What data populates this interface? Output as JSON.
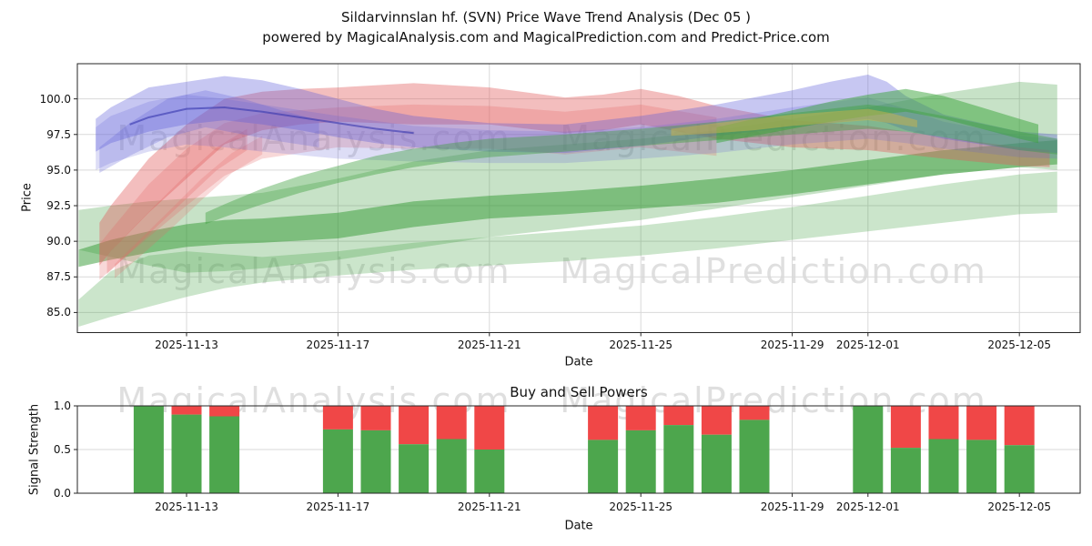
{
  "header": {
    "title_line1": "Sildarvinnslan hf. (SVN) Price Wave Trend Analysis (Dec 05 )",
    "title_line2": "powered by MagicalAnalysis.com and MagicalPrediction.com and Predict-Price.com"
  },
  "watermarks": {
    "analysis": "MagicalAnalysis.com",
    "prediction": "MagicalPrediction.com"
  },
  "chart_data": [
    {
      "type": "area",
      "title": "",
      "xlabel": "Date",
      "ylabel": "Price",
      "ylim": [
        83.6,
        102.5
      ],
      "xlim_days": [
        0.1,
        26.6
      ],
      "grid": true,
      "yticks": {
        "values": [
          85.0,
          87.5,
          90.0,
          92.5,
          95.0,
          97.5,
          100.0
        ],
        "labels": [
          "85.0",
          "87.5",
          "90.0",
          "92.5",
          "95.0",
          "97.5",
          "100.0"
        ]
      },
      "xticks": {
        "days": [
          3,
          7,
          11,
          15,
          19,
          21,
          25
        ],
        "labels": [
          "2025-11-13",
          "2025-11-17",
          "2025-11-21",
          "2025-11-25",
          "2025-11-29",
          "2025-12-01",
          "2025-12-05"
        ]
      },
      "bands": [
        {
          "name": "green-light-lower",
          "color": "#44a044",
          "opacity": 0.28,
          "x": [
            0.15,
            1,
            2,
            3,
            4,
            5,
            7,
            9,
            11,
            13,
            15,
            17,
            19,
            21,
            23,
            25,
            26
          ],
          "upper": [
            85.9,
            87.9,
            89.0,
            89.3,
            89.1,
            88.9,
            89.3,
            89.9,
            90.3,
            90.7,
            91.1,
            91.7,
            92.4,
            93.2,
            94.0,
            94.7,
            94.9
          ],
          "lower": [
            84.0,
            84.7,
            85.4,
            86.1,
            86.7,
            87.1,
            87.6,
            88.0,
            88.3,
            88.6,
            89.0,
            89.5,
            90.1,
            90.7,
            91.3,
            91.9,
            92.0
          ]
        },
        {
          "name": "green-light-main",
          "color": "#44a044",
          "opacity": 0.3,
          "x": [
            0.15,
            1,
            2,
            3,
            4,
            5,
            7,
            9,
            11,
            13,
            15,
            17,
            19,
            21,
            23,
            25,
            26
          ],
          "upper": [
            92.2,
            92.5,
            92.8,
            93.0,
            93.2,
            93.4,
            94.4,
            95.6,
            96.4,
            96.8,
            97.2,
            97.8,
            98.6,
            99.4,
            100.4,
            101.2,
            101.0
          ],
          "lower": [
            89.4,
            88.9,
            88.3,
            87.8,
            87.9,
            88.1,
            88.7,
            89.5,
            90.3,
            90.9,
            91.5,
            92.3,
            93.1,
            93.9,
            94.7,
            95.2,
            95.0
          ]
        },
        {
          "name": "green-dark",
          "color": "#339933",
          "opacity": 0.5,
          "x": [
            0.15,
            1,
            2,
            3,
            4,
            5,
            7,
            9,
            11,
            13,
            15,
            17,
            19,
            21,
            23,
            25,
            26
          ],
          "upper": [
            89.4,
            90.1,
            90.7,
            91.2,
            91.5,
            91.6,
            92.0,
            92.8,
            93.2,
            93.5,
            93.9,
            94.4,
            95.0,
            95.7,
            96.4,
            96.9,
            97.1
          ],
          "lower": [
            88.2,
            88.7,
            89.2,
            89.6,
            89.8,
            89.9,
            90.2,
            91.0,
            91.6,
            91.9,
            92.3,
            92.7,
            93.3,
            94.0,
            94.7,
            95.2,
            95.4
          ]
        },
        {
          "name": "red-wide-pink",
          "color": "#e46a6a",
          "opacity": 0.26,
          "x": [
            0.7,
            1,
            2,
            3,
            4,
            5,
            7,
            9,
            11,
            13,
            15,
            17
          ],
          "upper": [
            89.8,
            90.8,
            94.0,
            96.5,
            98.3,
            99.0,
            99.4,
            99.6,
            99.5,
            99.1,
            99.6,
            98.7
          ],
          "lower": [
            87.3,
            88.0,
            90.3,
            92.5,
            94.6,
            95.8,
            96.6,
            96.5,
            96.5,
            96.1,
            96.6,
            96.0
          ]
        },
        {
          "name": "red-stripe-a",
          "color": "#e46a6a",
          "opacity": 0.3,
          "x": [
            0.9,
            1.5,
            2.2,
            3,
            3.8,
            4.6
          ],
          "upper": [
            89.0,
            90.7,
            92.6,
            94.7,
            96.6,
            97.9
          ],
          "lower": [
            87.7,
            89.2,
            91.0,
            93.0,
            95.0,
            96.4
          ]
        },
        {
          "name": "red-stripe-b",
          "color": "#e46a6a",
          "opacity": 0.24,
          "x": [
            1.1,
            1.8,
            2.6,
            3.4,
            4.2,
            5.0
          ],
          "upper": [
            88.4,
            90.2,
            92.3,
            94.4,
            96.2,
            97.4
          ],
          "lower": [
            87.4,
            89.0,
            90.9,
            92.9,
            94.8,
            96.1
          ]
        },
        {
          "name": "red-main",
          "color": "#e05d5d",
          "opacity": 0.4,
          "x": [
            0.7,
            1,
            2,
            3,
            4,
            5,
            6,
            7,
            9,
            11,
            13,
            14,
            15,
            16,
            17,
            19,
            21,
            23,
            25,
            25.8
          ],
          "upper": [
            91.3,
            92.5,
            95.8,
            98.2,
            100.0,
            100.5,
            100.7,
            100.8,
            101.1,
            100.8,
            100.1,
            100.3,
            100.7,
            100.2,
            99.5,
            98.5,
            98.1,
            97.3,
            96.6,
            96.4
          ],
          "lower": [
            88.3,
            89.3,
            92.0,
            94.4,
            96.8,
            97.8,
            98.2,
            98.4,
            98.2,
            98.2,
            97.6,
            97.8,
            98.2,
            97.7,
            97.2,
            96.6,
            96.4,
            95.8,
            95.3,
            95.2
          ]
        },
        {
          "name": "blue-light",
          "color": "#6565d8",
          "opacity": 0.22,
          "x": [
            0.6,
            1,
            2,
            3,
            4,
            5,
            7,
            9,
            11,
            13,
            15,
            17,
            19,
            21,
            22,
            23,
            25,
            26
          ],
          "upper": [
            98.0,
            98.8,
            99.8,
            100.3,
            100.0,
            99.6,
            98.8,
            98.1,
            97.8,
            97.7,
            98.0,
            98.6,
            99.4,
            100.1,
            99.3,
            98.4,
            97.4,
            97.2
          ],
          "lower": [
            95.0,
            95.5,
            96.3,
            96.8,
            96.6,
            96.3,
            95.8,
            95.6,
            95.5,
            95.5,
            95.8,
            96.2,
            96.8,
            97.2,
            96.9,
            96.5,
            95.9,
            95.8
          ]
        },
        {
          "name": "blue-small-left",
          "color": "#6565d8",
          "opacity": 0.28,
          "x": [
            0.7,
            1.5,
            2.5,
            3.5,
            4.5,
            5.5,
            6.5
          ],
          "upper": [
            96.6,
            98.3,
            100.0,
            100.6,
            100.0,
            99.2,
            98.5
          ],
          "lower": [
            94.8,
            96.0,
            97.3,
            98.0,
            97.5,
            97.0,
            96.6
          ]
        },
        {
          "name": "blue-main",
          "color": "#5a5ad8",
          "opacity": 0.34,
          "x": [
            0.6,
            1,
            2,
            3,
            4,
            5,
            6,
            7,
            8,
            9,
            11,
            13,
            15,
            17,
            19,
            20,
            21,
            21.5,
            22,
            23,
            25,
            26
          ],
          "upper": [
            98.6,
            99.4,
            100.8,
            101.2,
            101.6,
            101.3,
            100.7,
            100.0,
            99.3,
            98.8,
            98.3,
            98.2,
            98.8,
            99.6,
            100.6,
            101.2,
            101.7,
            101.2,
            100.2,
            98.9,
            97.7,
            97.5
          ],
          "lower": [
            96.3,
            96.9,
            97.7,
            98.2,
            98.5,
            98.2,
            97.8,
            97.3,
            96.9,
            96.6,
            96.3,
            96.2,
            96.7,
            97.4,
            98.0,
            98.3,
            98.6,
            98.3,
            97.8,
            97.2,
            96.4,
            96.2
          ]
        },
        {
          "name": "green-crossing",
          "color": "#3f9f3f",
          "opacity": 0.42,
          "x": [
            3.5,
            4,
            5,
            6,
            7,
            8,
            9,
            10,
            11,
            13,
            15,
            17,
            19,
            21,
            22,
            23,
            25,
            26
          ],
          "upper": [
            92.0,
            92.6,
            93.7,
            94.6,
            95.3,
            96.0,
            96.5,
            96.9,
            97.2,
            97.5,
            97.9,
            98.4,
            99.0,
            99.6,
            99.3,
            98.8,
            97.7,
            97.2
          ],
          "lower": [
            91.2,
            91.7,
            92.6,
            93.4,
            94.1,
            94.7,
            95.2,
            95.6,
            95.9,
            96.3,
            96.7,
            97.1,
            97.5,
            97.9,
            97.7,
            97.3,
            96.4,
            96.1
          ]
        },
        {
          "name": "green-top-right",
          "color": "#3aa33a",
          "opacity": 0.5,
          "x": [
            17,
            18,
            19,
            20,
            21,
            22,
            23,
            24,
            25,
            25.5
          ],
          "upper": [
            98.0,
            98.6,
            99.2,
            99.8,
            100.3,
            100.7,
            100.2,
            99.4,
            98.6,
            98.2
          ],
          "lower": [
            96.9,
            97.4,
            97.9,
            98.4,
            98.8,
            99.1,
            98.6,
            97.9,
            97.2,
            96.9
          ]
        },
        {
          "name": "yellow-band",
          "color": "#c9b44c",
          "opacity": 0.5,
          "x": [
            15.8,
            17,
            18,
            19,
            20,
            21,
            21.6,
            22.3
          ],
          "upper": [
            97.9,
            98.3,
            98.6,
            98.9,
            99.1,
            99.3,
            99.0,
            98.5
          ],
          "lower": [
            97.4,
            97.6,
            97.8,
            98.1,
            98.3,
            98.5,
            98.3,
            98.0
          ]
        }
      ],
      "trend_line": {
        "name": "navy-trend-line",
        "color": "#3535ad",
        "x": [
          1.5,
          2,
          3,
          4,
          5,
          6,
          7,
          8,
          9
        ],
        "y": [
          98.2,
          98.7,
          99.3,
          99.4,
          99.1,
          98.7,
          98.3,
          97.9,
          97.6
        ]
      }
    },
    {
      "type": "stacked_bar",
      "title": "Buy and Sell Powers",
      "xlabel": "Date",
      "ylabel": "Signal Strength",
      "ylim": [
        0.0,
        1.0
      ],
      "grid": true,
      "yticks": {
        "values": [
          0.0,
          0.5,
          1.0
        ],
        "labels": [
          "0.0",
          "0.5",
          "1.0"
        ]
      },
      "xticks": {
        "days": [
          3,
          7,
          11,
          15,
          19,
          21,
          25
        ],
        "labels": [
          "2025-11-13",
          "2025-11-17",
          "2025-11-21",
          "2025-11-25",
          "2025-11-29",
          "2025-12-01",
          "2025-12-05"
        ]
      },
      "bars": {
        "buy_color": "#4da64d",
        "sell_color": "#f04747",
        "dates": [
          "2025-11-12",
          "2025-11-13",
          "2025-11-14",
          "2025-11-17",
          "2025-11-18",
          "2025-11-19",
          "2025-11-20",
          "2025-11-21",
          "2025-11-24",
          "2025-11-25",
          "2025-11-26",
          "2025-11-27",
          "2025-11-28",
          "2025-12-01",
          "2025-12-02",
          "2025-12-03",
          "2025-12-04",
          "2025-12-05"
        ],
        "day": [
          2,
          3,
          4,
          7,
          8,
          9,
          10,
          11,
          14,
          15,
          16,
          17,
          18,
          21,
          22,
          23,
          24,
          25
        ],
        "buy": [
          1.0,
          0.9,
          0.88,
          0.73,
          0.72,
          0.56,
          0.62,
          0.5,
          0.61,
          0.72,
          0.78,
          0.67,
          0.84,
          1.0,
          0.52,
          0.62,
          0.61,
          0.55
        ],
        "sell": [
          0.0,
          0.1,
          0.12,
          0.27,
          0.28,
          0.44,
          0.38,
          0.5,
          0.39,
          0.28,
          0.22,
          0.33,
          0.16,
          0.0,
          0.48,
          0.38,
          0.39,
          0.45
        ]
      }
    }
  ]
}
